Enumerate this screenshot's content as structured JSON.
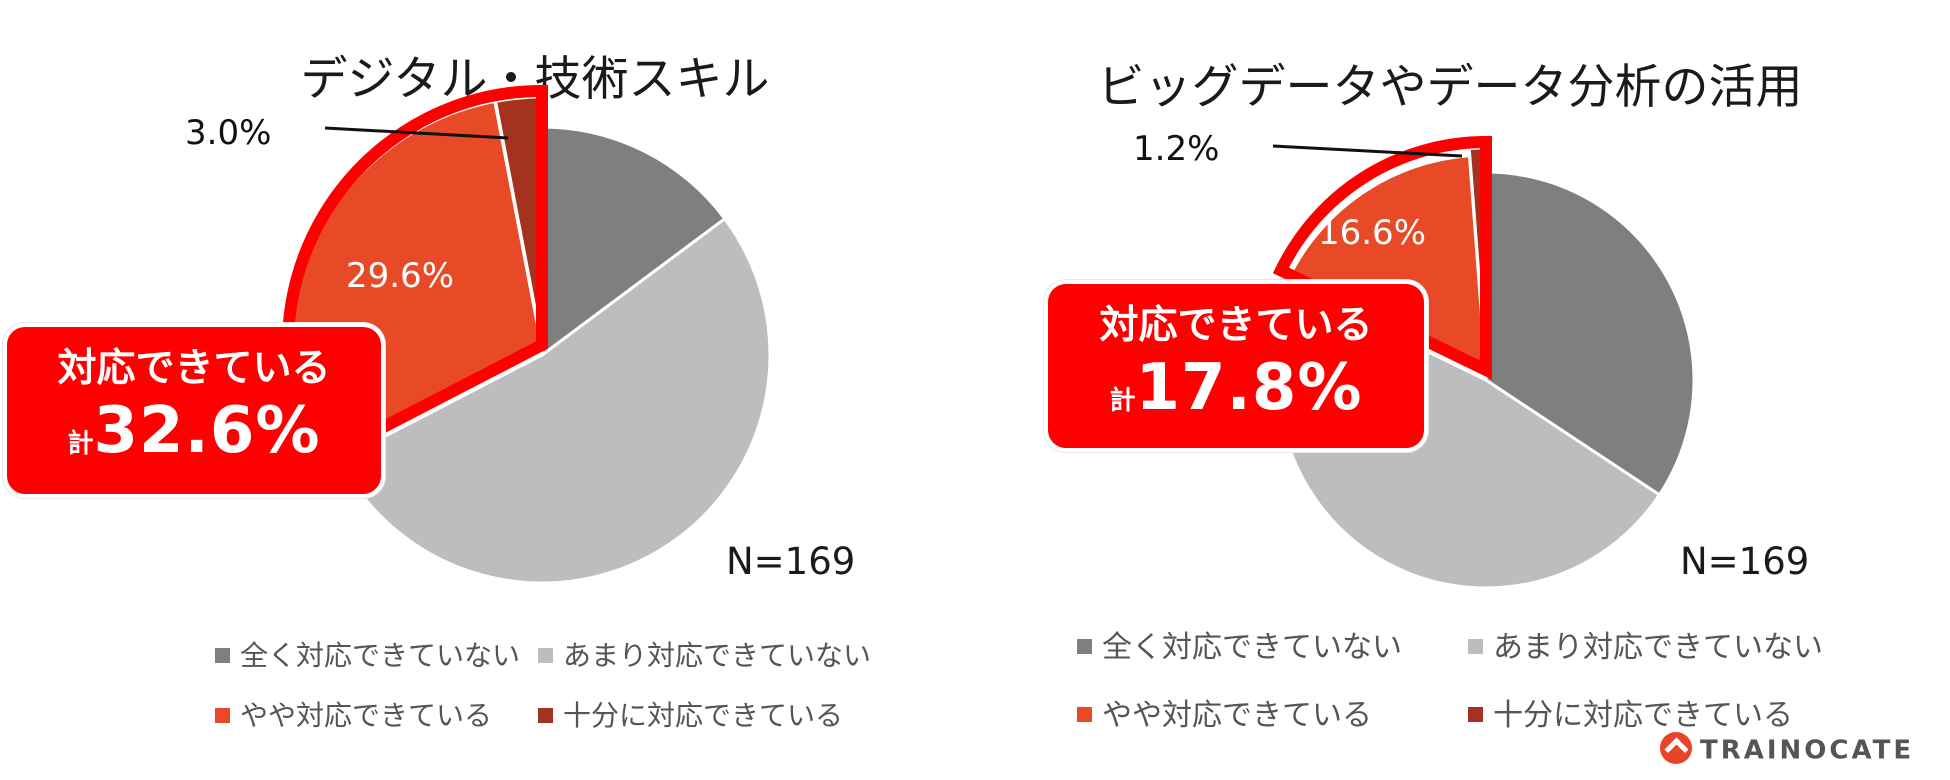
{
  "chart_data": [
    {
      "type": "pie",
      "title": "デジタル・技術スキル",
      "categories": [
        "十分に対応できている",
        "やや対応できている",
        "あまり対応できていない",
        "全く対応できていない"
      ],
      "values": [
        3.0,
        29.6,
        52.6,
        14.8
      ],
      "colors": [
        "#a5321e",
        "#e84a27",
        "#bdbdbf",
        "#7f7f80"
      ],
      "data_labels": {
        "0": "3.0%",
        "1": "29.6%"
      },
      "start_angle_deg": 0,
      "direction": "counterclockwise",
      "highlight": {
        "label": "対応できている",
        "prefix": "計",
        "value": "32.6%"
      },
      "n_label": "N=169",
      "legend": [
        "全く対応できていない",
        "あまり対応できていない",
        "やや対応できている",
        "十分に対応できている"
      ]
    },
    {
      "type": "pie",
      "title": "ビッグデータやデータ分析の活用",
      "categories": [
        "十分に対応できている",
        "やや対応できている",
        "あまり対応できていない",
        "全く対応できていない"
      ],
      "values": [
        1.2,
        16.6,
        47.9,
        34.3
      ],
      "colors": [
        "#a5321e",
        "#e84a27",
        "#bdbdbf",
        "#7f7f80"
      ],
      "data_labels": {
        "0": "1.2%",
        "1": "16.6%"
      },
      "start_angle_deg": 0,
      "direction": "counterclockwise",
      "highlight": {
        "label": "対応できている",
        "prefix": "計",
        "value": "17.8%"
      },
      "n_label": "N=169",
      "legend": [
        "全く対応できていない",
        "あまり対応できていない",
        "やや対応できている",
        "十分に対応できている"
      ]
    }
  ],
  "brand": "TRAINOCATE"
}
